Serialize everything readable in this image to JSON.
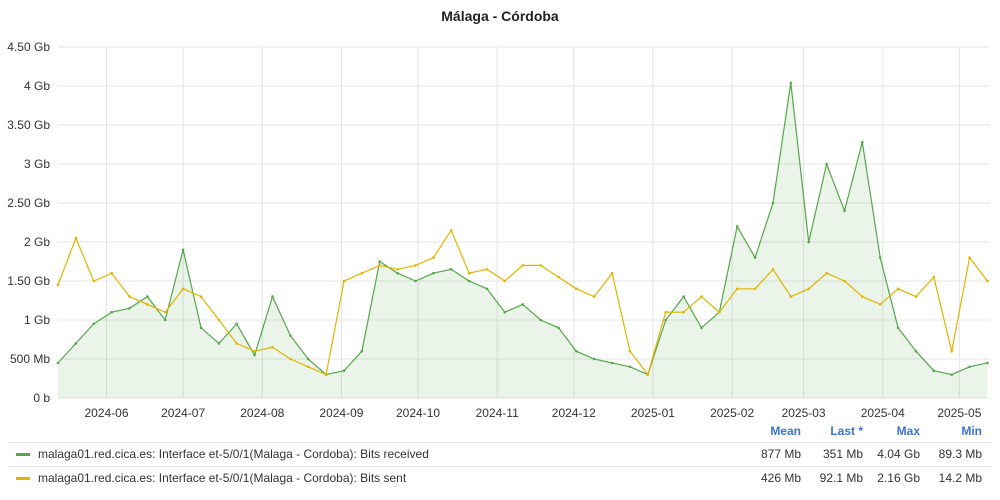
{
  "title": "Málaga - Córdoba",
  "chart_data": {
    "type": "line",
    "title": "Málaga - Córdoba",
    "y_unit": "Gb",
    "ylim": [
      0,
      4.5
    ],
    "y_ticks": [
      {
        "value": 0,
        "label": "0 b"
      },
      {
        "value": 0.5,
        "label": "500 Mb"
      },
      {
        "value": 1,
        "label": "1 Gb"
      },
      {
        "value": 1.5,
        "label": "1.50 Gb"
      },
      {
        "value": 2,
        "label": "2 Gb"
      },
      {
        "value": 2.5,
        "label": "2.50 Gb"
      },
      {
        "value": 3,
        "label": "3 Gb"
      },
      {
        "value": 3.5,
        "label": "3.50 Gb"
      },
      {
        "value": 4,
        "label": "4 Gb"
      },
      {
        "value": 4.5,
        "label": "4.50 Gb"
      }
    ],
    "xlim": [
      "2024-05-13",
      "2025-05-13"
    ],
    "x_ticks": [
      "2024-06",
      "2024-07",
      "2024-08",
      "2024-09",
      "2024-10",
      "2024-11",
      "2024-12",
      "2025-01",
      "2025-02",
      "2025-03",
      "2025-04",
      "2025-05"
    ],
    "grid": true,
    "series": [
      {
        "name": "malaga01.red.cica.es: Interface et-5/0/1(Malaga - Cordoba): Bits received",
        "color": "#56a64b",
        "fill": true,
        "x": [
          "2024-05-13",
          "2024-05-20",
          "2024-05-27",
          "2024-06-03",
          "2024-06-10",
          "2024-06-17",
          "2024-06-24",
          "2024-07-01",
          "2024-07-08",
          "2024-07-15",
          "2024-07-22",
          "2024-07-29",
          "2024-08-05",
          "2024-08-12",
          "2024-08-19",
          "2024-08-26",
          "2024-09-02",
          "2024-09-09",
          "2024-09-16",
          "2024-09-23",
          "2024-09-30",
          "2024-10-07",
          "2024-10-14",
          "2024-10-21",
          "2024-10-28",
          "2024-11-04",
          "2024-11-11",
          "2024-11-18",
          "2024-11-25",
          "2024-12-02",
          "2024-12-09",
          "2024-12-16",
          "2024-12-23",
          "2024-12-30",
          "2025-01-06",
          "2025-01-13",
          "2025-01-20",
          "2025-01-27",
          "2025-02-03",
          "2025-02-10",
          "2025-02-17",
          "2025-02-24",
          "2025-03-03",
          "2025-03-10",
          "2025-03-17",
          "2025-03-24",
          "2025-03-31",
          "2025-04-07",
          "2025-04-14",
          "2025-04-21",
          "2025-04-28",
          "2025-05-05",
          "2025-05-12"
        ],
        "values": [
          0.45,
          0.7,
          0.95,
          1.1,
          1.15,
          1.3,
          1.0,
          1.9,
          0.9,
          0.7,
          0.95,
          0.55,
          1.3,
          0.8,
          0.5,
          0.3,
          0.35,
          0.6,
          1.75,
          1.6,
          1.5,
          1.6,
          1.65,
          1.5,
          1.4,
          1.1,
          1.2,
          1.0,
          0.9,
          0.6,
          0.5,
          0.45,
          0.4,
          0.3,
          1.0,
          1.3,
          0.9,
          1.1,
          2.2,
          1.8,
          2.5,
          4.04,
          2.0,
          3.0,
          2.4,
          3.28,
          1.8,
          0.9,
          0.6,
          0.35,
          0.3,
          0.4,
          0.45
        ]
      },
      {
        "name": "malaga01.red.cica.es: Interface et-5/0/1(Malaga - Cordoba): Bits sent",
        "color": "#e0b400",
        "fill": false,
        "x": [
          "2024-05-13",
          "2024-05-20",
          "2024-05-27",
          "2024-06-03",
          "2024-06-10",
          "2024-06-17",
          "2024-06-24",
          "2024-07-01",
          "2024-07-08",
          "2024-07-15",
          "2024-07-22",
          "2024-07-29",
          "2024-08-05",
          "2024-08-12",
          "2024-08-19",
          "2024-08-26",
          "2024-09-02",
          "2024-09-09",
          "2024-09-16",
          "2024-09-23",
          "2024-09-30",
          "2024-10-07",
          "2024-10-14",
          "2024-10-21",
          "2024-10-28",
          "2024-11-04",
          "2024-11-11",
          "2024-11-18",
          "2024-11-25",
          "2024-12-02",
          "2024-12-09",
          "2024-12-16",
          "2024-12-23",
          "2024-12-30",
          "2025-01-06",
          "2025-01-13",
          "2025-01-20",
          "2025-01-27",
          "2025-02-03",
          "2025-02-10",
          "2025-02-17",
          "2025-02-24",
          "2025-03-03",
          "2025-03-10",
          "2025-03-17",
          "2025-03-24",
          "2025-03-31",
          "2025-04-07",
          "2025-04-14",
          "2025-04-21",
          "2025-04-28",
          "2025-05-05",
          "2025-05-12"
        ],
        "values": [
          1.45,
          2.05,
          1.5,
          1.6,
          1.3,
          1.2,
          1.1,
          1.4,
          1.3,
          1.0,
          0.7,
          0.6,
          0.65,
          0.5,
          0.4,
          0.3,
          1.5,
          1.6,
          1.7,
          1.65,
          1.7,
          1.8,
          2.15,
          1.6,
          1.65,
          1.5,
          1.7,
          1.7,
          1.55,
          1.4,
          1.3,
          1.6,
          0.6,
          0.3,
          1.1,
          1.1,
          1.3,
          1.1,
          1.4,
          1.4,
          1.65,
          1.3,
          1.4,
          1.6,
          1.5,
          1.3,
          1.2,
          1.4,
          1.3,
          1.55,
          0.6,
          1.8,
          1.5
        ]
      }
    ]
  },
  "legend": {
    "headers": {
      "mean": "Mean",
      "last": "Last *",
      "max": "Max",
      "min": "Min"
    },
    "rows": [
      {
        "name": "malaga01.red.cica.es: Interface et-5/0/1(Malaga - Cordoba): Bits received",
        "color": "#56a64b",
        "mean": "877 Mb",
        "last": "351 Mb",
        "max": "4.04 Gb",
        "min": "89.3 Mb"
      },
      {
        "name": "malaga01.red.cica.es: Interface et-5/0/1(Malaga - Cordoba): Bits sent",
        "color": "#e0b400",
        "mean": "426 Mb",
        "last": "92.1 Mb",
        "max": "2.16 Gb",
        "min": "14.2 Mb"
      }
    ]
  }
}
